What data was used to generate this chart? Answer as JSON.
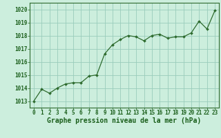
{
  "x": [
    0,
    1,
    2,
    3,
    4,
    5,
    6,
    7,
    8,
    9,
    10,
    11,
    12,
    13,
    14,
    15,
    16,
    17,
    18,
    19,
    20,
    21,
    22,
    23
  ],
  "y": [
    1013.0,
    1013.9,
    1013.6,
    1014.0,
    1014.3,
    1014.4,
    1014.4,
    1014.9,
    1015.0,
    1016.6,
    1017.3,
    1017.7,
    1018.0,
    1017.9,
    1017.6,
    1018.0,
    1018.1,
    1017.8,
    1017.9,
    1017.9,
    1018.2,
    1019.1,
    1018.5,
    1019.9
  ],
  "yticks": [
    1013,
    1014,
    1015,
    1016,
    1017,
    1018,
    1019,
    1020
  ],
  "xticks": [
    0,
    1,
    2,
    3,
    4,
    5,
    6,
    7,
    8,
    9,
    10,
    11,
    12,
    13,
    14,
    15,
    16,
    17,
    18,
    19,
    20,
    21,
    22,
    23
  ],
  "ylim": [
    1012.5,
    1020.5
  ],
  "xlim": [
    -0.5,
    23.5
  ],
  "line_color": "#2d6a2d",
  "marker_color": "#2d6a2d",
  "bg_color": "#cceedd",
  "grid_color": "#99ccbb",
  "xlabel": "Graphe pression niveau de la mer (hPa)",
  "xlabel_color": "#1a5e1a",
  "xlabel_fontsize": 7.0,
  "tick_color": "#1a5e1a",
  "tick_fontsize": 5.5,
  "spine_color": "#2d6a2d"
}
